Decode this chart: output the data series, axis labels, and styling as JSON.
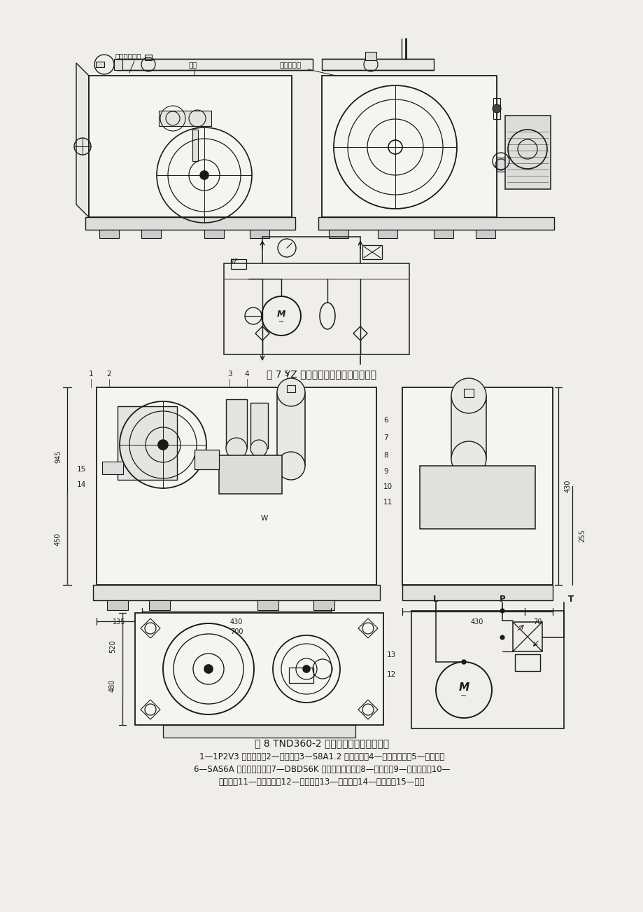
{
  "page_bg": "#f0eeea",
  "fig_width": 9.2,
  "fig_height": 13.02,
  "dpi": 100,
  "caption1": "图 7 YZ 液压站结构型式及调压系统图",
  "caption2": "图 8 TND360-2 型液压站外型图及系统图",
  "legend_line1": "1—1P2V3 型变量泵；2—电动机；3—S8A1.2 型单向阀；4—空气过滤器；5—蓄能器；",
  "legend_line2": "6—SAS6A 型手动换向阀；7—DBDS6K 型直动式溢流阀；8—集成块；9—泄漏油管；10—",
  "legend_line3": "回油管；11—压力油管；12—进油口；13—回油口；14—吸油管；15—标牌",
  "label1": "调压回路装置",
  "label2": "油箱",
  "label3": "液压泵装置",
  "text_color": "#1a1a1a",
  "line_color": "#1a1a1a"
}
